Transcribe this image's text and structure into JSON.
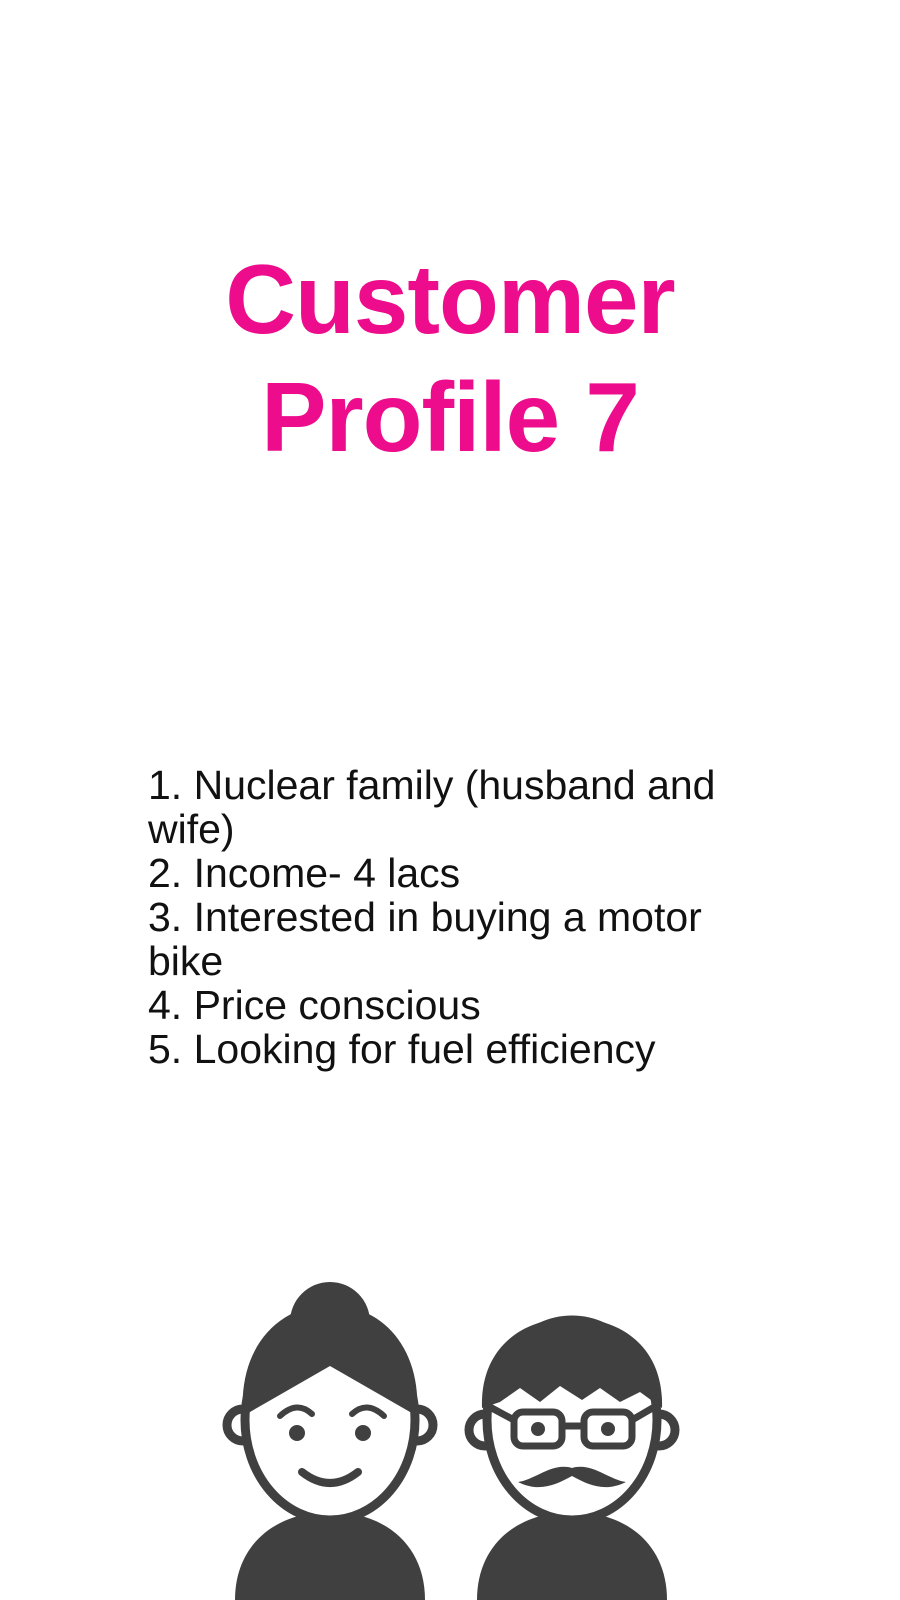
{
  "title": {
    "line1": "Customer",
    "line2": "Profile 7",
    "color": "#EC0C8C"
  },
  "profile_points": [
    "1. Nuclear family (husband and wife)",
    "2. Income- 4 lacs",
    "3. Interested in buying a motor bike",
    "4. Price conscious",
    "5. Looking for fuel efficiency"
  ],
  "illustration": {
    "icons": [
      "woman-icon",
      "man-icon"
    ],
    "fill_color": "#404040"
  }
}
